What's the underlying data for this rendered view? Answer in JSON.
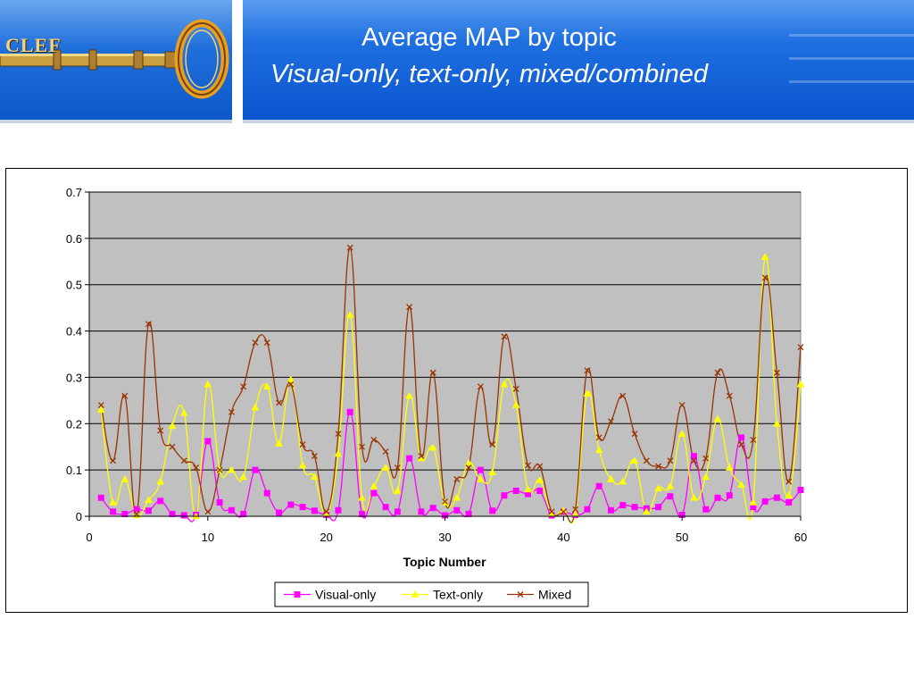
{
  "header": {
    "logo_text": "CLEF",
    "title_line1": "Average MAP by topic",
    "title_line2": "Visual-only, text-only, mixed/combined"
  },
  "colors": {
    "visual": "#ff00ff",
    "text": "#ffff00",
    "mixed": "#993300",
    "plot_bg": "#c0c0c0",
    "header_blue": "#1565d8"
  },
  "chart_data": {
    "type": "scatter",
    "title": "",
    "xlabel": "Topic Number",
    "ylabel": "",
    "xlim": [
      0,
      60
    ],
    "ylim": [
      0,
      0.7
    ],
    "xticks": [
      0,
      10,
      20,
      30,
      40,
      50,
      60
    ],
    "yticks": [
      0,
      0.1,
      0.2,
      0.3,
      0.4,
      0.5,
      0.6,
      0.7
    ],
    "ytick_labels": [
      "0",
      "0.1",
      "0.2",
      "0.3",
      "0.4",
      "0.5",
      "0.6",
      "0.7"
    ],
    "grid": "horizontal",
    "legend_position": "bottom",
    "x": [
      1,
      2,
      3,
      4,
      5,
      6,
      7,
      8,
      9,
      10,
      11,
      12,
      13,
      14,
      15,
      16,
      17,
      18,
      19,
      20,
      21,
      22,
      23,
      24,
      25,
      26,
      27,
      28,
      29,
      30,
      31,
      32,
      33,
      34,
      35,
      36,
      37,
      38,
      39,
      40,
      41,
      42,
      43,
      44,
      45,
      46,
      47,
      48,
      49,
      50,
      51,
      52,
      53,
      54,
      55,
      56,
      57,
      58,
      59,
      60
    ],
    "series": [
      {
        "name": "Visual-only",
        "marker": "square",
        "color": "#ff00ff",
        "values": [
          0.04,
          0.01,
          0.005,
          0.015,
          0.012,
          0.033,
          0.005,
          0.002,
          0.003,
          0.162,
          0.03,
          0.013,
          0.005,
          0.1,
          0.05,
          0.008,
          0.025,
          0.02,
          0.012,
          0.003,
          0.013,
          0.225,
          0.005,
          0.05,
          0.02,
          0.01,
          0.125,
          0.01,
          0.018,
          0.002,
          0.013,
          0.005,
          0.1,
          0.012,
          0.045,
          0.055,
          0.048,
          0.055,
          0.002,
          0.01,
          0.003,
          0.015,
          0.065,
          0.013,
          0.024,
          0.02,
          0.017,
          0.02,
          0.043,
          0.003,
          0.13,
          0.015,
          0.04,
          0.045,
          0.17,
          0.02,
          0.032,
          0.04,
          0.03,
          0.057
        ]
      },
      {
        "name": "Text-only",
        "marker": "triangle",
        "color": "#ffff00",
        "values": [
          0.23,
          0.03,
          0.08,
          0.002,
          0.035,
          0.075,
          0.195,
          0.223,
          0.0,
          0.285,
          0.1,
          0.1,
          0.085,
          0.235,
          0.28,
          0.157,
          0.295,
          0.11,
          0.085,
          0.005,
          0.135,
          0.435,
          0.04,
          0.065,
          0.105,
          0.055,
          0.26,
          0.125,
          0.148,
          0.03,
          0.04,
          0.115,
          0.08,
          0.095,
          0.285,
          0.24,
          0.058,
          0.078,
          0.005,
          0.013,
          0.005,
          0.265,
          0.143,
          0.08,
          0.075,
          0.12,
          0.01,
          0.06,
          0.065,
          0.178,
          0.04,
          0.085,
          0.21,
          0.105,
          0.068,
          0.03,
          0.56,
          0.2,
          0.045,
          0.285
        ]
      },
      {
        "name": "Mixed",
        "marker": "x",
        "color": "#993300",
        "values": [
          0.24,
          0.12,
          0.26,
          0.005,
          0.415,
          0.185,
          0.15,
          0.12,
          0.105,
          0.01,
          0.1,
          0.225,
          0.28,
          0.375,
          0.375,
          0.245,
          0.285,
          0.155,
          0.13,
          0.01,
          0.178,
          0.58,
          0.15,
          0.165,
          0.14,
          0.105,
          0.452,
          0.13,
          0.31,
          0.032,
          0.08,
          0.105,
          0.28,
          0.155,
          0.388,
          0.275,
          0.11,
          0.108,
          0.01,
          0.01,
          0.015,
          0.315,
          0.17,
          0.205,
          0.26,
          0.178,
          0.12,
          0.108,
          0.12,
          0.24,
          0.12,
          0.125,
          0.31,
          0.26,
          0.155,
          0.165,
          0.515,
          0.31,
          0.075,
          0.365
        ]
      }
    ]
  }
}
